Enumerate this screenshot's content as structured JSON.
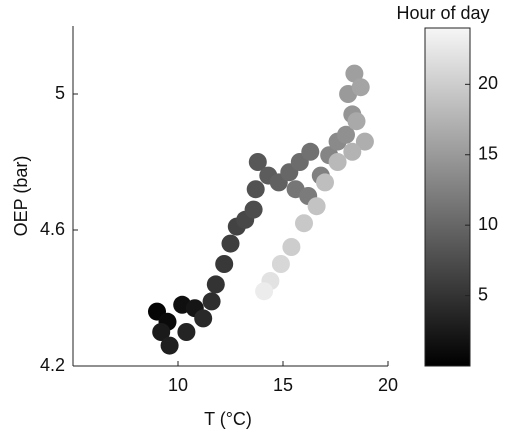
{
  "chart_data": {
    "type": "scatter",
    "xlabel": "T (°C)",
    "ylabel": "OEP (bar)",
    "x": [
      9.0,
      9.5,
      10.2,
      10.8,
      9.2,
      9.6,
      10.4,
      11.2,
      11.6,
      11.8,
      12.2,
      12.5,
      12.8,
      13.2,
      13.6,
      13.7,
      13.8,
      14.3,
      14.8,
      15.3,
      15.8,
      16.3,
      15.6,
      16.2,
      16.8,
      17.2,
      17.6,
      18.0,
      18.3,
      18.1,
      18.4,
      18.7,
      18.5,
      18.9,
      18.3,
      17.6,
      17.0,
      16.6,
      16.0,
      15.4,
      14.9,
      14.4,
      14.1
    ],
    "values": [
      4.36,
      4.33,
      4.38,
      4.37,
      4.3,
      4.26,
      4.3,
      4.34,
      4.39,
      4.44,
      4.5,
      4.56,
      4.61,
      4.63,
      4.66,
      4.72,
      4.8,
      4.76,
      4.74,
      4.77,
      4.8,
      4.83,
      4.72,
      4.7,
      4.76,
      4.82,
      4.86,
      4.88,
      4.94,
      5.0,
      5.06,
      5.02,
      4.92,
      4.86,
      4.83,
      4.8,
      4.74,
      4.67,
      4.62,
      4.55,
      4.5,
      4.45,
      4.42
    ],
    "hours": [
      0.5,
      1,
      1.5,
      2,
      2.5,
      3,
      3.5,
      4,
      4.5,
      5,
      5.5,
      6,
      6.5,
      7,
      7.5,
      8,
      8.5,
      9,
      9.5,
      10,
      10.5,
      11,
      11.5,
      12,
      12.5,
      13,
      13.5,
      14,
      14.5,
      15,
      15.5,
      16,
      16.5,
      17,
      17.5,
      18,
      18.5,
      19,
      19.5,
      20,
      21,
      22,
      23
    ],
    "xlim": [
      5,
      20
    ],
    "ylim": [
      4.2,
      5.2
    ],
    "xticks": [
      10,
      15,
      20
    ],
    "yticks": [
      4.2,
      4.6,
      5
    ],
    "colormap": [
      "#000000",
      "#f6f6f6"
    ],
    "colorbar": {
      "label": "Hour of day",
      "lim": [
        0,
        24
      ],
      "ticks": [
        5,
        10,
        15,
        20
      ]
    }
  }
}
